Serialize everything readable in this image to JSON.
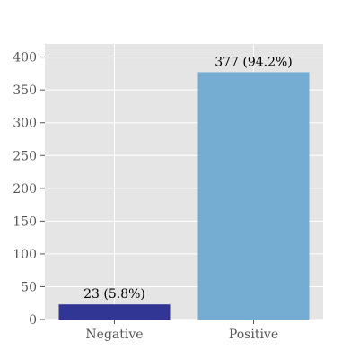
{
  "chart_data": {
    "type": "bar",
    "categories": [
      "Negative",
      "Positive"
    ],
    "values": [
      23,
      377
    ],
    "data_labels": [
      "23 (5.8%)",
      "377 (94.2%)"
    ],
    "colors": [
      "#313695",
      "#74add1"
    ],
    "ylim": [
      0,
      420
    ],
    "yticks": [
      0,
      50,
      100,
      150,
      200,
      250,
      300,
      350,
      400
    ],
    "grid": true,
    "background": "#e5e5e5",
    "grid_color": "#ffffff",
    "title": "",
    "xlabel": "",
    "ylabel": ""
  }
}
